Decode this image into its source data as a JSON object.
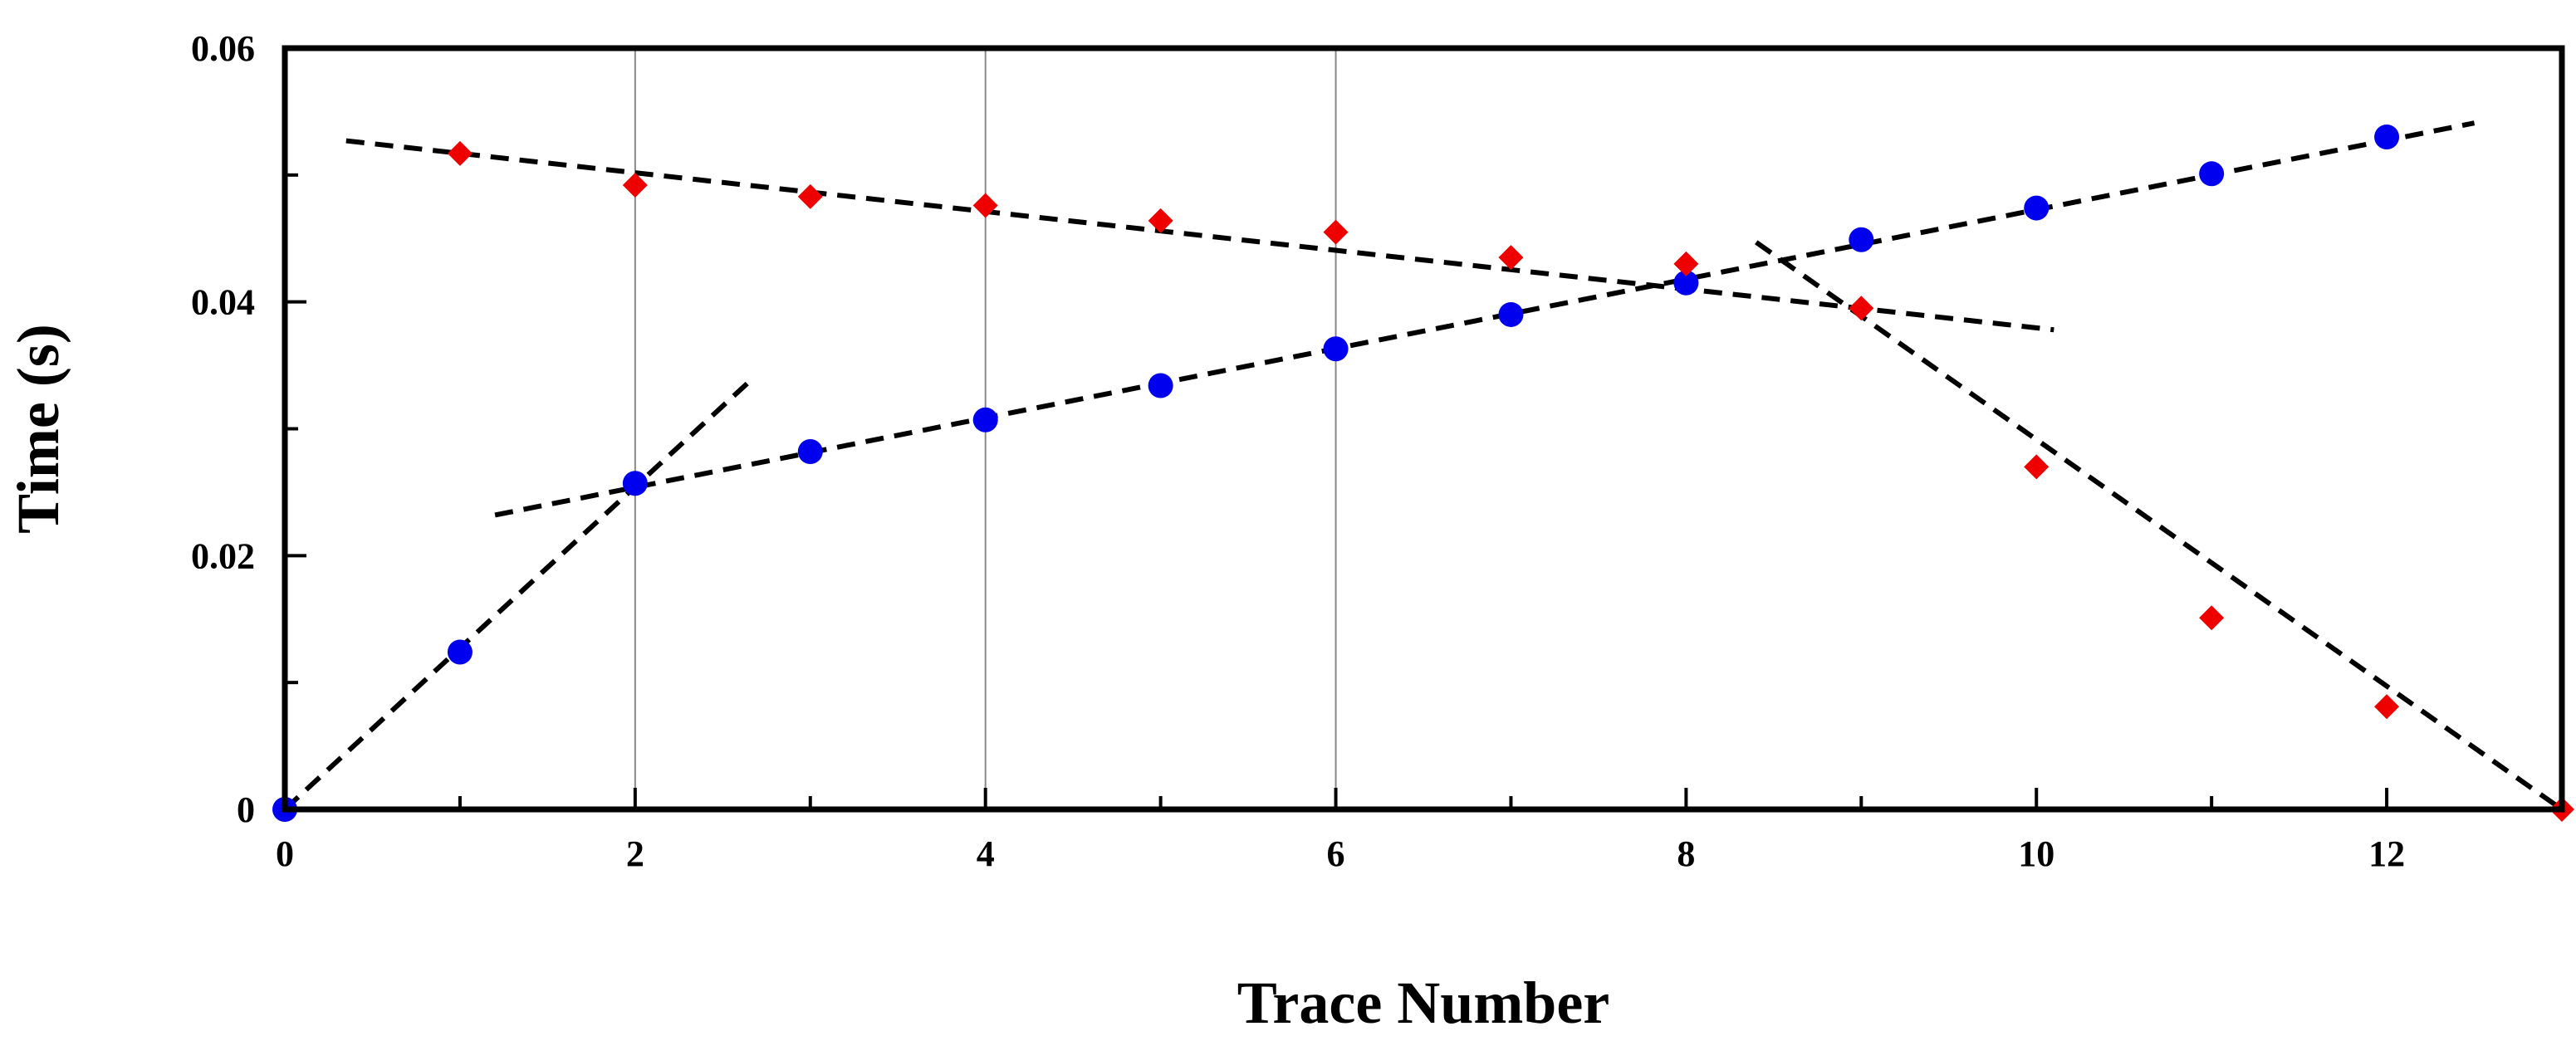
{
  "chart_data": {
    "type": "scatter",
    "xlabel": "Trace Number",
    "ylabel": "Time (s)",
    "xlim": [
      0,
      13
    ],
    "ylim": [
      0,
      0.06
    ],
    "x_ticks": [
      0,
      2,
      4,
      6,
      8,
      10,
      12
    ],
    "x_tick_labels": [
      "0",
      "2",
      "4",
      "6",
      "8",
      "10",
      "12"
    ],
    "y_ticks": [
      0,
      0.02,
      0.04,
      0.06
    ],
    "y_tick_labels": [
      "0",
      "0.02",
      "0.04",
      "0.06"
    ],
    "grid": {
      "vertical_lines_at": [
        2,
        4,
        6
      ]
    },
    "series": [
      {
        "color": "#0000ee",
        "marker": "circle",
        "x": [
          0,
          1,
          2,
          3,
          4,
          5,
          6,
          7,
          8,
          9,
          10,
          11,
          12
        ],
        "y": [
          0.0,
          0.0124,
          0.0257,
          0.0282,
          0.0307,
          0.0334,
          0.0363,
          0.039,
          0.0415,
          0.0449,
          0.0474,
          0.0501,
          0.053
        ]
      },
      {
        "color": "#ee0000",
        "marker": "diamond",
        "x": [
          1,
          2,
          3,
          4,
          5,
          6,
          7,
          8,
          9,
          10,
          11,
          12,
          13
        ],
        "y": [
          0.0517,
          0.0492,
          0.0483,
          0.0476,
          0.0464,
          0.0455,
          0.0435,
          0.043,
          0.0395,
          0.027,
          0.0151,
          0.0081,
          0.0
        ]
      }
    ],
    "fit_lines": [
      {
        "style": "dashed",
        "x": [
          0,
          2.65
        ],
        "y": [
          0,
          0.0337
        ]
      },
      {
        "style": "dashed",
        "x": [
          1.2,
          12.5
        ],
        "y": [
          0.0232,
          0.0541
        ]
      },
      {
        "style": "dashed",
        "x": [
          0.35,
          10.1
        ],
        "y": [
          0.0527,
          0.0378
        ]
      },
      {
        "style": "dashed",
        "x": [
          8.4,
          13
        ],
        "y": [
          0.0447,
          0.0
        ]
      }
    ]
  }
}
